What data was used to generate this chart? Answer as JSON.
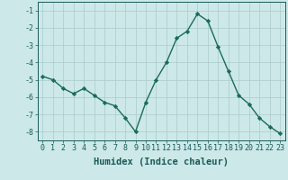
{
  "x": [
    0,
    1,
    2,
    3,
    4,
    5,
    6,
    7,
    8,
    9,
    10,
    11,
    12,
    13,
    14,
    15,
    16,
    17,
    18,
    19,
    20,
    21,
    22,
    23
  ],
  "y": [
    -4.8,
    -5.0,
    -5.5,
    -5.8,
    -5.5,
    -5.9,
    -6.3,
    -6.5,
    -7.2,
    -8.0,
    -6.3,
    -5.0,
    -4.0,
    -2.6,
    -2.2,
    -1.2,
    -1.6,
    -3.1,
    -4.5,
    -5.9,
    -6.4,
    -7.2,
    -7.7,
    -8.1
  ],
  "line_color": "#1a6b5a",
  "marker": "D",
  "marker_size": 2.2,
  "bg_color": "#cce8e8",
  "grid_color": "#aacaca",
  "tick_color": "#1a5a5a",
  "xlabel": "Humidex (Indice chaleur)",
  "xlabel_fontsize": 7.5,
  "tick_fontsize": 6.0,
  "ylim": [
    -8.5,
    -0.5
  ],
  "xlim": [
    -0.5,
    23.5
  ],
  "yticks": [
    -8,
    -7,
    -6,
    -5,
    -4,
    -3,
    -2,
    -1
  ],
  "xticks": [
    0,
    1,
    2,
    3,
    4,
    5,
    6,
    7,
    8,
    9,
    10,
    11,
    12,
    13,
    14,
    15,
    16,
    17,
    18,
    19,
    20,
    21,
    22,
    23
  ]
}
